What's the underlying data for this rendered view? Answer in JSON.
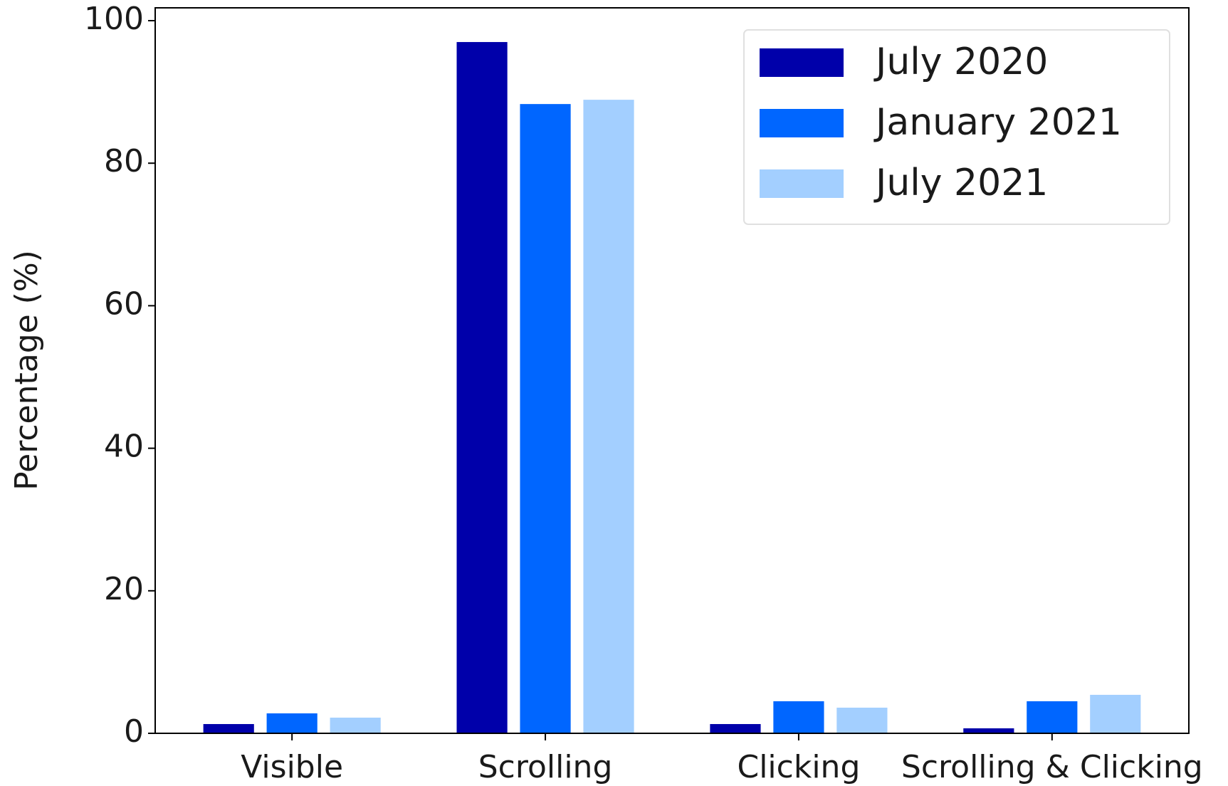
{
  "chart_data": {
    "type": "bar",
    "ylabel": "Percentage (%)",
    "categories": [
      "Visible",
      "Scrolling",
      "Clicking",
      "Scrolling & Clicking"
    ],
    "series": [
      {
        "name": "July 2020",
        "color": "#0000aa",
        "values": [
          1.3,
          97.0,
          1.3,
          0.7
        ]
      },
      {
        "name": "January 2021",
        "color": "#0066ff",
        "values": [
          2.8,
          88.3,
          4.5,
          4.5
        ]
      },
      {
        "name": "July 2021",
        "color": "#a3cfff",
        "values": [
          2.2,
          88.9,
          3.6,
          5.4
        ]
      }
    ],
    "ylim": [
      0,
      101.8
    ],
    "yticks": [
      0,
      20,
      40,
      60,
      80,
      100
    ],
    "legend": "upper right"
  }
}
